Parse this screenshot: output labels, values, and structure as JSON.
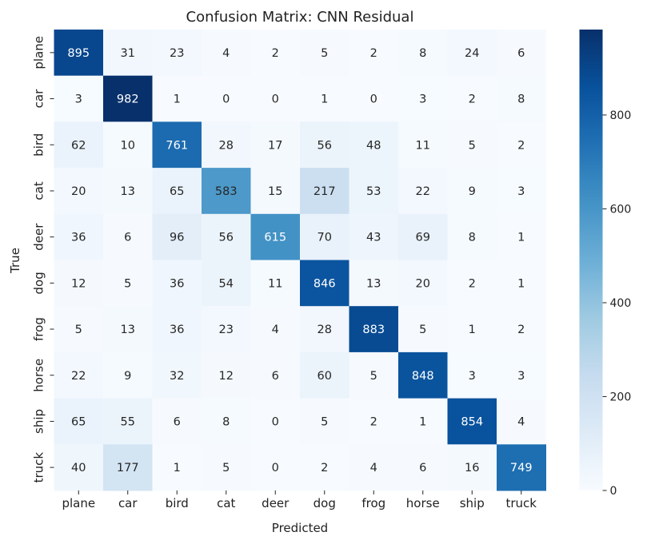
{
  "chart_data": {
    "type": "heatmap",
    "title": "Confusion Matrix: CNN Residual",
    "xlabel": "Predicted",
    "ylabel": "True",
    "x_categories": [
      "plane",
      "car",
      "bird",
      "cat",
      "deer",
      "dog",
      "frog",
      "horse",
      "ship",
      "truck"
    ],
    "y_categories": [
      "plane",
      "car",
      "bird",
      "cat",
      "deer",
      "dog",
      "frog",
      "horse",
      "ship",
      "truck"
    ],
    "values": [
      [
        895,
        31,
        23,
        4,
        2,
        5,
        2,
        8,
        24,
        6
      ],
      [
        3,
        982,
        1,
        0,
        0,
        1,
        0,
        3,
        2,
        8
      ],
      [
        62,
        10,
        761,
        28,
        17,
        56,
        48,
        11,
        5,
        2
      ],
      [
        20,
        13,
        65,
        583,
        15,
        217,
        53,
        22,
        9,
        3
      ],
      [
        36,
        6,
        96,
        56,
        615,
        70,
        43,
        69,
        8,
        1
      ],
      [
        12,
        5,
        36,
        54,
        11,
        846,
        13,
        20,
        2,
        1
      ],
      [
        5,
        13,
        36,
        23,
        4,
        28,
        883,
        5,
        1,
        2
      ],
      [
        22,
        9,
        32,
        12,
        6,
        60,
        5,
        848,
        3,
        3
      ],
      [
        65,
        55,
        6,
        8,
        0,
        5,
        2,
        1,
        854,
        4
      ],
      [
        40,
        177,
        1,
        5,
        0,
        2,
        4,
        6,
        16,
        749
      ]
    ],
    "colormap": "Blues",
    "color_range": [
      0,
      982
    ],
    "colorbar_ticks": [
      0,
      200,
      400,
      600,
      800
    ],
    "colorbar_tick_labels": [
      "0",
      "200",
      "400",
      "600",
      "800"
    ]
  }
}
